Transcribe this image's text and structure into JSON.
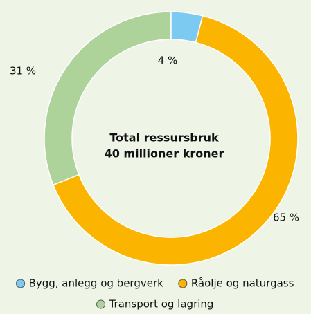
{
  "chart_data": {
    "type": "donut",
    "center_text": [
      "Total ressursbruk",
      "40 millioner kroner"
    ],
    "categories": [
      "Bygg, anlegg og bergverk",
      "Råolje og naturgass",
      "Transport og lagring"
    ],
    "values": [
      4,
      65,
      31
    ],
    "value_labels": [
      "4 %",
      "65 %",
      "31 %"
    ],
    "colors": [
      "#7ccaf2",
      "#fbb400",
      "#add39b"
    ],
    "legend": "bottom"
  }
}
